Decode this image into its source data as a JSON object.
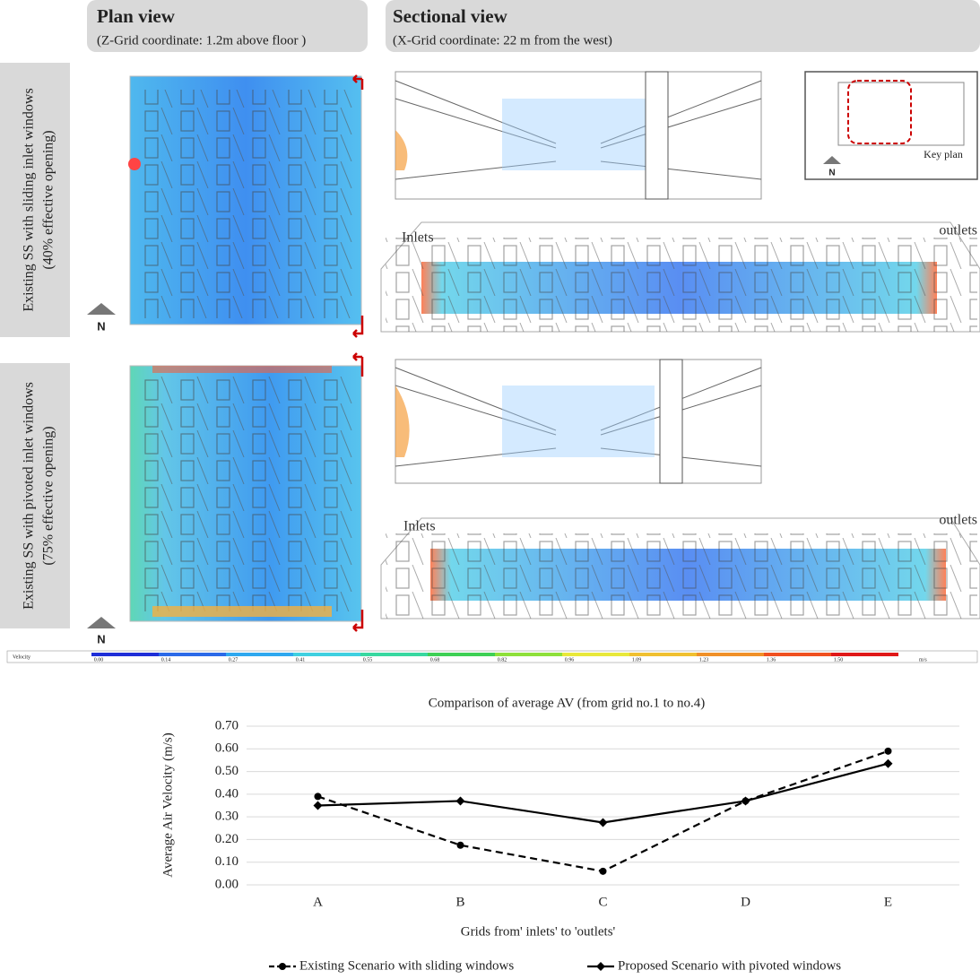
{
  "plan_header": {
    "title": "Plan view",
    "subtitle": "(Z-Grid coordinate: 1.2m above floor )"
  },
  "section_header": {
    "title": "Sectional view",
    "subtitle": "(X-Grid coordinate: 22 m from the west)"
  },
  "rows": [
    {
      "label": [
        "Existing SS with sliding inlet windows",
        "(40% effective opening)"
      ],
      "north": "N",
      "inlets": "Inlets",
      "outlets": "outlets"
    },
    {
      "label": [
        "Existing SS with pivoted inlet windows",
        "(75% effective opening)"
      ],
      "north": "N",
      "inlets": "Inlets",
      "outlets": "outlets"
    }
  ],
  "key_plan": {
    "label": "Key plan",
    "north": "N"
  },
  "colorbar": {
    "title": "Velocity",
    "ticks": [
      "0.00",
      "0.14",
      "0.27",
      "0.41",
      "0.55",
      "0.68",
      "0.82",
      "0.96",
      "1.09",
      "1.23",
      "1.36",
      "1.50"
    ],
    "unit": "m/s"
  },
  "chart_data": {
    "type": "line",
    "title": "Comparison of average AV (from grid no.1 to no.4)",
    "x_label": "Grids from' inlets' to 'outlets'",
    "y_label": "Average Air Velocity (m/s)",
    "categories": [
      "A",
      "B",
      "C",
      "D",
      "E"
    ],
    "series": [
      {
        "name": "Existing Scenario with sliding windows",
        "color": "#000000",
        "dashed": true,
        "marker": "circle",
        "values": [
          0.39,
          0.175,
          0.06,
          0.37,
          0.59
        ]
      },
      {
        "name": "Proposed Scenario with pivoted windows",
        "color": "#000000",
        "dashed": false,
        "marker": "diamond",
        "values": [
          0.35,
          0.37,
          0.275,
          0.37,
          0.535
        ]
      }
    ],
    "ylim": [
      0,
      0.7
    ],
    "yticks": [
      {
        "value": 0,
        "label": "0.00"
      },
      {
        "value": 0.1,
        "label": "0.10"
      },
      {
        "value": 0.2,
        "label": "0.20"
      },
      {
        "value": 0.3,
        "label": "0.30"
      },
      {
        "value": 0.4,
        "label": "0.40"
      },
      {
        "value": 0.5,
        "label": "0.50"
      },
      {
        "value": 0.6,
        "label": "0.60"
      },
      {
        "value": 0.7,
        "label": "0.70"
      }
    ],
    "grid": true,
    "legend": "bottom"
  }
}
